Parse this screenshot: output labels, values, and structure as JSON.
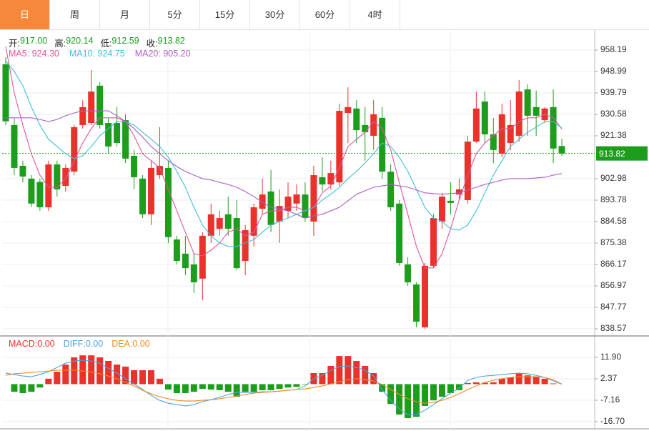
{
  "tabs": {
    "items": [
      "日",
      "周",
      "月",
      "5分",
      "15分",
      "30分",
      "60分",
      "4时"
    ],
    "active": 0
  },
  "chart_data": [
    {
      "type": "candlestick",
      "info": {
        "labels": [
          "开:",
          "高:",
          "低:",
          "收:"
        ],
        "values": [
          917.0,
          920.14,
          912.59,
          913.82
        ],
        "value_labels": [
          "917.00",
          "920.14",
          "912.59",
          "913.82"
        ]
      },
      "open": [
        952.1,
        926.0,
        908.5,
        903.0,
        901.6,
        890.7,
        909.1,
        899.9,
        906.0,
        926.0,
        926.9,
        942.9,
        926.9,
        926.9,
        928.1,
        912.8,
        903.0,
        887.7,
        904.5,
        907.6,
        876.9,
        870.8,
        866.2,
        860.1,
        878.5,
        881.5,
        887.7,
        886.1,
        867.7,
        878.5,
        890.1,
        897.5,
        884.6,
        889.2,
        892.3,
        896.2,
        884.6,
        903.6,
        900.5,
        901.4,
        931.2,
        933.1,
        926.0,
        921.4,
        929.1,
        906.0,
        892.3,
        866.2,
        857.6,
        839.2,
        865.6,
        884.6,
        893.5,
        896.2,
        893.8,
        918.9,
        936.1,
        922.0,
        913.7,
        918.3,
        921.4,
        941.3,
        933.7,
        928.1,
        933.7,
        917.0
      ],
      "close": [
        927.6,
        907.6,
        903.9,
        892.3,
        890.7,
        909.1,
        898.4,
        907.6,
        925.1,
        933.7,
        940.4,
        926.0,
        916.8,
        918.3,
        911.6,
        903.6,
        887.7,
        907.6,
        908.5,
        877.9,
        867.7,
        864.6,
        858.5,
        878.5,
        887.7,
        886.1,
        881.5,
        864.6,
        880.9,
        890.7,
        896.2,
        883.1,
        891.3,
        895.3,
        896.2,
        886.1,
        904.5,
        900.5,
        905.4,
        932.1,
        933.7,
        923.8,
        922.9,
        930.6,
        906.0,
        890.7,
        866.8,
        858.5,
        841.6,
        865.6,
        886.1,
        895.3,
        892.6,
        898.4,
        918.9,
        933.1,
        922.0,
        915.3,
        930.6,
        926.0,
        940.4,
        930.0,
        930.0,
        933.1,
        915.9,
        913.82
      ],
      "high": [
        955.1,
        929.1,
        910.7,
        904.5,
        903.0,
        910.7,
        910.7,
        909.1,
        926.0,
        936.7,
        949.6,
        944.4,
        929.1,
        933.7,
        930.6,
        915.3,
        904.5,
        910.7,
        925.1,
        910.7,
        878.5,
        878.5,
        870.8,
        880.0,
        892.3,
        889.2,
        895.3,
        893.8,
        883.1,
        892.3,
        903.0,
        906.7,
        898.4,
        901.4,
        900.5,
        901.4,
        908.5,
        912.2,
        910.7,
        935.2,
        942.2,
        936.7,
        933.7,
        936.7,
        933.7,
        909.1,
        893.8,
        869.2,
        858.5,
        866.8,
        887.7,
        896.9,
        901.4,
        903.0,
        921.4,
        940.4,
        940.4,
        929.1,
        935.2,
        936.7,
        945.3,
        943.5,
        940.8,
        933.7,
        941.3,
        920.14
      ],
      "low": [
        926.0,
        904.5,
        901.4,
        890.7,
        889.2,
        889.2,
        895.3,
        897.5,
        904.5,
        924.5,
        926.0,
        924.5,
        913.7,
        916.8,
        909.7,
        898.4,
        886.1,
        883.1,
        903.0,
        875.4,
        866.2,
        861.6,
        853.9,
        850.8,
        875.4,
        878.5,
        878.5,
        863.7,
        861.6,
        873.9,
        887.7,
        880.0,
        875.4,
        886.1,
        889.2,
        884.6,
        878.5,
        897.5,
        898.4,
        899.9,
        918.3,
        918.3,
        910.7,
        915.3,
        903.0,
        889.2,
        865.6,
        857.0,
        839.2,
        838.6,
        864.6,
        881.5,
        887.7,
        893.8,
        892.3,
        918.3,
        918.3,
        909.7,
        912.2,
        915.3,
        918.9,
        921.4,
        921.4,
        926.9,
        909.7,
        912.59
      ],
      "up_color": "#e8322b",
      "down_color": "#1c9e1c",
      "series": [
        {
          "name": "MA5",
          "legend": "MA5: 924.30",
          "color": "#e0559d",
          "values": [
            959.7,
            939.8,
            926.0,
            913.7,
            904.5,
            899.3,
            899.3,
            903.0,
            910.7,
            918.3,
            924.5,
            929.1,
            929.1,
            929.1,
            927.5,
            921.4,
            913.7,
            910.7,
            907.6,
            898.4,
            889.2,
            880.0,
            870.8,
            869.9,
            872.3,
            875.4,
            880.0,
            881.5,
            878.5,
            880.0,
            887.7,
            889.2,
            889.2,
            890.7,
            890.7,
            889.2,
            890.7,
            896.9,
            899.9,
            907.6,
            916.8,
            919.9,
            922.9,
            927.5,
            924.5,
            915.3,
            901.4,
            887.7,
            873.9,
            864.7,
            864.7,
            870.8,
            881.5,
            893.8,
            904.5,
            913.7,
            918.3,
            921.4,
            924.5,
            924.5,
            927.5,
            929.1,
            929.1,
            930.6,
            929.1,
            924.3
          ]
        },
        {
          "name": "MA10",
          "legend": "MA10: 924.75",
          "color": "#3fbfd8",
          "values": [
            953.6,
            949.0,
            942.9,
            933.7,
            926.0,
            919.9,
            916.8,
            913.7,
            911.6,
            912.8,
            916.8,
            921.4,
            924.5,
            927.5,
            927.5,
            926.0,
            922.9,
            919.9,
            916.8,
            912.2,
            906.1,
            899.3,
            890.7,
            883.1,
            878.5,
            875.4,
            873.9,
            873.9,
            875.4,
            876.9,
            880.0,
            883.1,
            884.6,
            886.1,
            887.7,
            889.2,
            890.7,
            893.8,
            896.3,
            899.3,
            903.0,
            906.1,
            909.7,
            913.7,
            918.3,
            916.8,
            912.2,
            906.1,
            898.4,
            890.7,
            886.1,
            884.6,
            881.5,
            880.9,
            883.1,
            889.2,
            896.9,
            904.5,
            910.7,
            916.8,
            919.9,
            922.9,
            925.1,
            927.5,
            927.5,
            924.75
          ]
        },
        {
          "name": "MA20",
          "legend": "MA20: 905.20",
          "color": "#b05cc6",
          "values": [
            929.1,
            929.1,
            929.1,
            929.1,
            928.4,
            927.5,
            928.4,
            930.0,
            931.2,
            932.1,
            932.1,
            932.1,
            932.1,
            930.0,
            927.5,
            924.5,
            920.8,
            916.8,
            913.7,
            910.7,
            908.2,
            906.1,
            904.5,
            903.0,
            902.4,
            901.4,
            900.5,
            899.3,
            897.5,
            895.3,
            892.9,
            890.7,
            890.1,
            889.2,
            887.7,
            886.1,
            887.0,
            887.7,
            889.2,
            890.7,
            893.5,
            896.3,
            897.8,
            899.3,
            899.9,
            900.5,
            899.9,
            899.3,
            898.1,
            896.9,
            896.6,
            896.3,
            896.6,
            896.9,
            898.1,
            899.3,
            900.5,
            901.4,
            902.4,
            903.0,
            903.0,
            903.0,
            903.3,
            903.6,
            904.5,
            905.2
          ]
        }
      ],
      "ylim": [
        835.5,
        966.78
      ],
      "yticks": [
        958.19,
        948.99,
        939.79,
        930.58,
        921.38,
        902.98,
        893.78,
        884.58,
        875.38,
        866.17,
        856.97,
        847.77,
        838.57
      ],
      "grid": true,
      "last_price_line": true
    },
    {
      "type": "macd",
      "series": [
        {
          "name": "MACD",
          "legend": "MACD:0.00",
          "color": "#e8322b",
          "negative_color": "#1c9e1c",
          "kind": "bar",
          "values": [
            0,
            -3.4,
            -4.0,
            -3.4,
            -1.5,
            2.4,
            5.5,
            8.7,
            11.9,
            12.8,
            12.8,
            11.9,
            10.3,
            8.7,
            7.8,
            6.2,
            6.2,
            6.2,
            2.4,
            -2.4,
            -4.0,
            -4.0,
            -3.4,
            -2.1,
            -2.4,
            -2.7,
            -3.4,
            -5.6,
            -3.4,
            -3.4,
            -2.7,
            -2.7,
            -2.1,
            -1.5,
            -1.2,
            -0.2,
            4.9,
            4.9,
            8.1,
            12.5,
            12.5,
            10.3,
            8.1,
            4.9,
            -3.4,
            -8.8,
            -13.5,
            -15.1,
            -14.5,
            -9.7,
            -7.2,
            -5.6,
            -4.0,
            -2.7,
            0.5,
            0.8,
            0.6,
            0.8,
            2.4,
            3.0,
            4.9,
            3.9,
            3.2,
            2.4,
            0.3,
            0.0
          ]
        },
        {
          "name": "DIFF",
          "legend": "DIFF:0.00",
          "color": "#4aa3df",
          "kind": "line",
          "values": [
            4.9,
            4.3,
            3.6,
            3.3,
            4.3,
            5.5,
            7.4,
            9.3,
            10.3,
            10.6,
            10.3,
            9.3,
            7.1,
            4.9,
            2.4,
            0.1,
            -2.4,
            -5.0,
            -7.2,
            -8.5,
            -9.1,
            -9.7,
            -9.1,
            -7.8,
            -6.9,
            -5.9,
            -4.6,
            -3.7,
            -3.7,
            -3.7,
            -3.4,
            -3.4,
            -3.1,
            -2.7,
            -2.4,
            -0.8,
            2.4,
            3.9,
            6.2,
            7.8,
            8.1,
            7.4,
            6.2,
            3.6,
            -2.4,
            -7.2,
            -11.0,
            -13.5,
            -13.5,
            -11.6,
            -9.1,
            -6.5,
            -4.0,
            -1.8,
            1.7,
            3.0,
            3.6,
            3.9,
            4.3,
            4.6,
            4.9,
            4.6,
            3.9,
            3.0,
            1.4,
            0.0
          ]
        },
        {
          "name": "DEA",
          "legend": "DEA:0.00",
          "color": "#f08a24",
          "kind": "line",
          "values": [
            3.9,
            4.6,
            4.9,
            5.2,
            5.5,
            5.8,
            6.2,
            6.2,
            6.2,
            5.8,
            5.5,
            4.6,
            3.6,
            2.4,
            0.8,
            -0.8,
            -2.7,
            -4.3,
            -5.6,
            -6.5,
            -7.2,
            -7.5,
            -7.5,
            -7.2,
            -6.9,
            -6.5,
            -5.9,
            -5.3,
            -4.6,
            -4.0,
            -3.7,
            -3.4,
            -3.1,
            -2.7,
            -2.4,
            -2.1,
            -1.5,
            -0.8,
            0.1,
            1.1,
            2.0,
            2.4,
            2.0,
            1.4,
            -0.2,
            -2.4,
            -4.6,
            -6.5,
            -7.8,
            -8.5,
            -8.1,
            -7.2,
            -5.9,
            -4.3,
            -2.4,
            -0.8,
            0.8,
            1.7,
            2.4,
            3.0,
            3.3,
            3.3,
            3.3,
            3.0,
            2.0,
            0.0
          ]
        }
      ],
      "ylim": [
        -19.88,
        21.43
      ],
      "yticks": [
        {
          "value": 11.9,
          "label": "11.90"
        },
        2.37,
        -7.16,
        {
          "value": -16.7,
          "label": "-16.70"
        }
      ],
      "grid": true
    }
  ]
}
